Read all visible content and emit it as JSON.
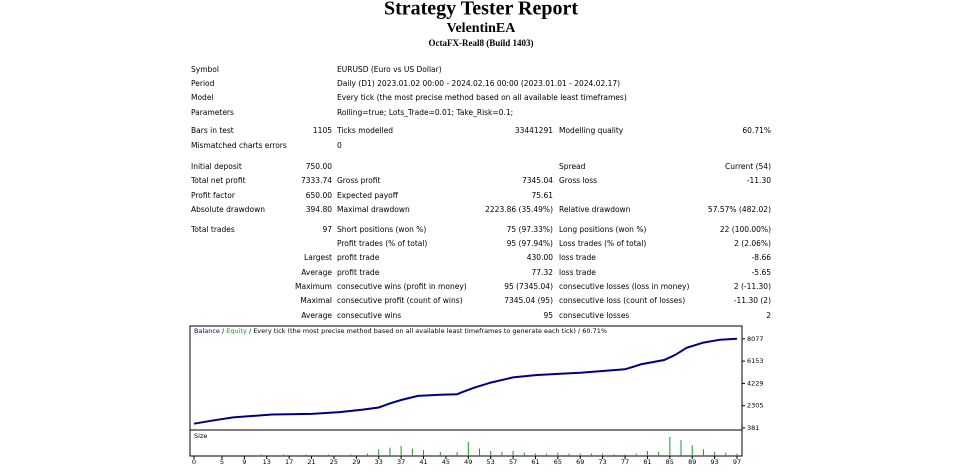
{
  "header": {
    "title": "Strategy Tester Report",
    "expert": "VelentinEA",
    "server": "OctaFX-Real8 (Build 1403)"
  },
  "table": {
    "rows": [
      [
        "Symbol",
        "EURUSD (Euro vs US Dollar)"
      ],
      [
        "Period",
        "Daily (D1) 2023.01.02 00:00 - 2024.02.16 00:00 (2023.01.01 - 2024.02.17)"
      ],
      [
        "Model",
        "Every tick (the most precise method based on all available least timeframes)"
      ],
      [
        "Parameters",
        "Rolling=true; Lots_Trade=0.01; Take_Risk=0.1;"
      ],
      [
        "Bars in test",
        "1105",
        "Ticks modelled",
        "33441291",
        "Modelling quality",
        "60.71%"
      ],
      [
        "Mismatched charts errors",
        "0"
      ],
      [
        "Initial deposit",
        "750.00",
        null,
        null,
        "Spread",
        "Current (54)"
      ],
      [
        "Total net profit",
        "7333.74",
        "Gross profit",
        "7345.04",
        "Gross loss",
        "-11.30"
      ],
      [
        "Profit factor",
        "650.00",
        "Expected payoff",
        "75.61"
      ],
      [
        "Absolute drawdown",
        "394.80",
        "Maximal drawdown",
        "2223.86 (35.49%)",
        "Relative drawdown",
        "57.57% (482.02)"
      ],
      [
        "Total trades",
        "97",
        "Short positions (won %)",
        "75 (97.33%)",
        "Long positions (won %)",
        "22 (100.00%)"
      ],
      [
        null,
        null,
        "Profit trades (% of total)",
        "95 (97.94%)",
        "Loss trades (% of total)",
        "2 (2.06%)"
      ],
      [
        null,
        "Largest",
        "profit trade",
        "430.00",
        "loss trade",
        "-8.66"
      ],
      [
        null,
        "Average",
        "profit trade",
        "77.32",
        "loss trade",
        "-5.65"
      ],
      [
        null,
        "Maximum",
        "consecutive wins (profit in money)",
        "95 (7345.04)",
        "consecutive losses (loss in money)",
        "2 (-11.30)"
      ],
      [
        null,
        "Maximal",
        "consecutive profit (count of wins)",
        "7345.04 (95)",
        "consecutive loss (count of losses)",
        "-11.30 (2)"
      ],
      [
        null,
        "Average",
        "consecutive wins",
        "95",
        "consecutive losses",
        "2"
      ]
    ]
  },
  "chart_data": {
    "type": "line",
    "separator": "/",
    "subtitle": "/ Every tick (the most precise method based on all available least timeframes to generate each tick) / 60.71%",
    "x": [
      0,
      3,
      7,
      14,
      21,
      26,
      30,
      33,
      35,
      37,
      40,
      44,
      47,
      48,
      50,
      53,
      57,
      61,
      65,
      69,
      73,
      77,
      80,
      84,
      86,
      88,
      91,
      94,
      97
    ],
    "series": [
      {
        "name": "Balance",
        "color": "#000080",
        "values": [
          750,
          1000,
          1300,
          1550,
          1600,
          1750,
          1950,
          2150,
          2500,
          2800,
          3150,
          3250,
          3300,
          3500,
          3850,
          4300,
          4750,
          4950,
          5050,
          5150,
          5300,
          5450,
          5900,
          6250,
          6700,
          7300,
          7750,
          8000,
          8084
        ]
      },
      {
        "name": "Equity",
        "color": "#1a9a1a",
        "values": [
          750,
          1000,
          1300,
          1550,
          1600,
          1750,
          1950,
          2150,
          2500,
          2800,
          3150,
          3250,
          3300,
          3500,
          3850,
          4300,
          4750,
          4950,
          5050,
          5150,
          5300,
          5450,
          5900,
          6250,
          6700,
          7300,
          7750,
          8000,
          8084
        ]
      }
    ],
    "xlim": [
      0,
      97
    ],
    "xticks": [
      0,
      5,
      9,
      13,
      17,
      21,
      25,
      29,
      33,
      37,
      41,
      45,
      49,
      53,
      57,
      61,
      65,
      69,
      73,
      77,
      81,
      85,
      89,
      93,
      97
    ],
    "ylim": [
      381,
      9184
    ],
    "yticks": [
      381,
      2305,
      4229,
      6153,
      8077
    ],
    "size_title": "Size",
    "size_color": "#1a9a1a",
    "size_ylim": [
      0,
      0.3
    ],
    "size_x": [
      2,
      4,
      8,
      12,
      16,
      20,
      24,
      28,
      31,
      33,
      35,
      37,
      39,
      41,
      44,
      47,
      49,
      51,
      53,
      55,
      57,
      59,
      61,
      63,
      65,
      67,
      69,
      71,
      73,
      75,
      77,
      79,
      81,
      83,
      85,
      87,
      89,
      91,
      93,
      95,
      97
    ],
    "size_values": [
      0.01,
      0.01,
      0.01,
      0.02,
      0.02,
      0.02,
      0.02,
      0.02,
      0.03,
      0.08,
      0.1,
      0.12,
      0.09,
      0.07,
      0.05,
      0.05,
      0.17,
      0.09,
      0.06,
      0.05,
      0.06,
      0.04,
      0.03,
      0.03,
      0.04,
      0.03,
      0.03,
      0.03,
      0.03,
      0.02,
      0.02,
      0.03,
      0.06,
      0.05,
      0.23,
      0.19,
      0.13,
      0.08,
      0.05,
      0.04,
      0.03
    ]
  }
}
